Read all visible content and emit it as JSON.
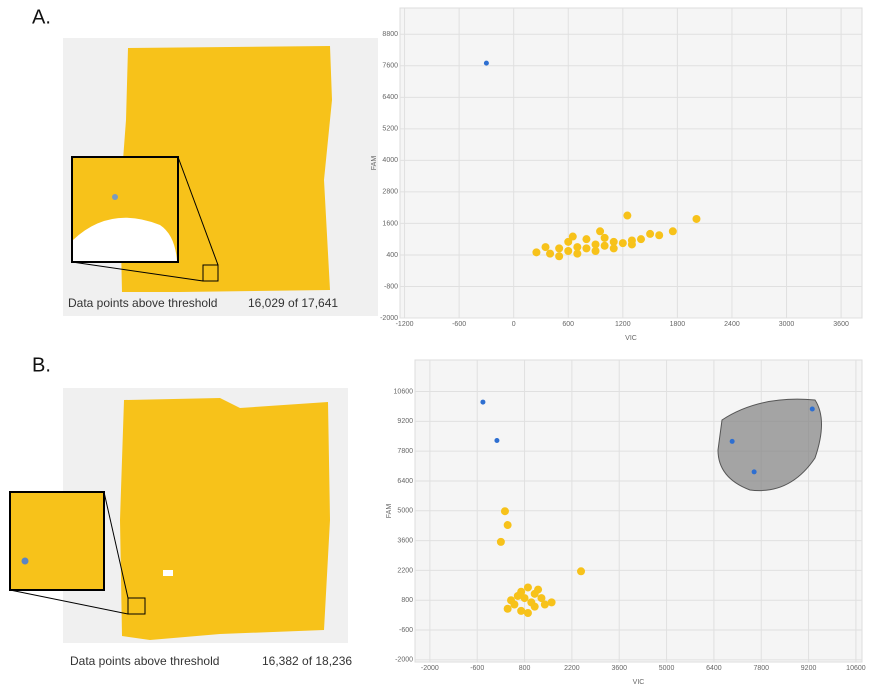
{
  "panels": [
    {
      "label": "A.",
      "caption": "Data points above threshold",
      "count": "16,029 of 17,641"
    },
    {
      "label": "B.",
      "caption": "Data points above threshold",
      "count": "16,382 of 18,236"
    }
  ],
  "chart_data": [
    {
      "type": "scatter",
      "x_label": "VIC",
      "y_label": "FAM",
      "xlim": [
        -1250,
        3830
      ],
      "ylim": [
        -2000,
        9800
      ],
      "xticks": [
        -1200,
        -600,
        0,
        600,
        1200,
        1800,
        2400,
        3000,
        3600
      ],
      "yticks": [
        -2000,
        -800,
        400,
        1600,
        2800,
        4000,
        5200,
        6400,
        7600,
        8800
      ],
      "grid": true,
      "series": [
        {
          "color": "#2e6fd1",
          "x": [
            -300
          ],
          "y": [
            7700
          ]
        },
        {
          "color": "#f7c21a",
          "x": [
            250,
            400,
            500,
            600,
            700,
            800,
            900,
            1000,
            1100,
            1200,
            1300,
            1400,
            500,
            700,
            900,
            1100,
            1300,
            600,
            800,
            1000,
            1500,
            1600,
            1750,
            2010,
            1250,
            350,
            650,
            950
          ],
          "y": [
            500,
            450,
            650,
            550,
            700,
            650,
            800,
            750,
            900,
            850,
            950,
            1000,
            350,
            450,
            550,
            650,
            800,
            900,
            1000,
            1050,
            1200,
            1150,
            1300,
            1770,
            1900,
            700,
            1100,
            1300
          ]
        }
      ]
    },
    {
      "type": "scatter",
      "x_label": "VIC",
      "y_label": "FAM",
      "xlim": [
        -2440,
        10780
      ],
      "ylim": [
        -2100,
        12080
      ],
      "xticks": [
        -2000,
        -600,
        800,
        2200,
        3600,
        5000,
        6400,
        7800,
        9200,
        10600
      ],
      "yticks": [
        -2000,
        -600,
        800,
        2200,
        3600,
        5000,
        6400,
        7800,
        9200,
        10600
      ],
      "grid": true,
      "series": [
        {
          "color": "#2e6fd1",
          "x": [
            -431,
            -17,
            6940,
            7590,
            9310
          ],
          "y": [
            10105,
            8300,
            8260,
            6825,
            9780
          ]
        },
        {
          "color": "#f7c21a",
          "x": [
            300,
            400,
            500,
            600,
            700,
            800,
            900,
            1000,
            1100,
            1200,
            1300,
            1400,
            1600,
            700,
            900,
            1100,
            220,
            300,
            100,
            2470
          ],
          "y": [
            400,
            800,
            600,
            1000,
            1200,
            900,
            1400,
            700,
            1100,
            1300,
            900,
            600,
            700,
            300,
            200,
            500,
            4980,
            4330,
            3540,
            2160
          ]
        }
      ]
    }
  ]
}
